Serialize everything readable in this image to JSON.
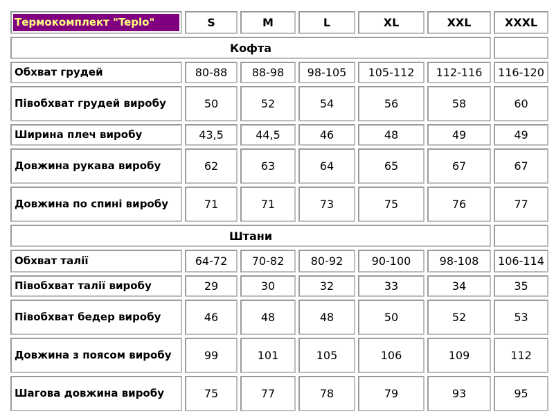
{
  "title": "Термокомплект \"Teplo\"",
  "colors": {
    "title_bg": "#800080",
    "title_text": "#ffff80"
  },
  "sizes": [
    "S",
    "M",
    "L",
    "XL",
    "XXL",
    "XXXL"
  ],
  "sections": [
    {
      "name": "Кофта",
      "rows": [
        {
          "label": "Обхват грудей",
          "values": [
            "80-88",
            "88-98",
            "98-105",
            "105-112",
            "112-116",
            "116-120"
          ]
        },
        {
          "label": "Півобхват грудей виробу",
          "values": [
            "50",
            "52",
            "54",
            "56",
            "58",
            "60"
          ]
        },
        {
          "label": "Ширина плеч виробу",
          "values": [
            "43,5",
            "44,5",
            "46",
            "48",
            "49",
            "49"
          ]
        },
        {
          "label": "Довжина рукава виробу",
          "values": [
            "62",
            "63",
            "64",
            "65",
            "67",
            "67"
          ]
        },
        {
          "label": "Довжина по спині виробу",
          "values": [
            "71",
            "71",
            "73",
            "75",
            "76",
            "77"
          ]
        }
      ]
    },
    {
      "name": "Штани",
      "rows": [
        {
          "label": "Обхват талії",
          "values": [
            "64-72",
            "70-82",
            "80-92",
            "90-100",
            "98-108",
            "106-114"
          ]
        },
        {
          "label": "Півобхват талії виробу",
          "values": [
            "29",
            "30",
            "32",
            "33",
            "34",
            "35"
          ]
        },
        {
          "label": "Півобхват бедер виробу",
          "values": [
            "46",
            "48",
            "48",
            "50",
            "52",
            "53"
          ]
        },
        {
          "label": "Довжина з поясом виробу",
          "values": [
            "99",
            "101",
            "105",
            "106",
            "109",
            "112"
          ]
        },
        {
          "label": "Шагова довжина виробу",
          "values": [
            "75",
            "77",
            "78",
            "79",
            "93",
            "95"
          ]
        }
      ]
    }
  ]
}
